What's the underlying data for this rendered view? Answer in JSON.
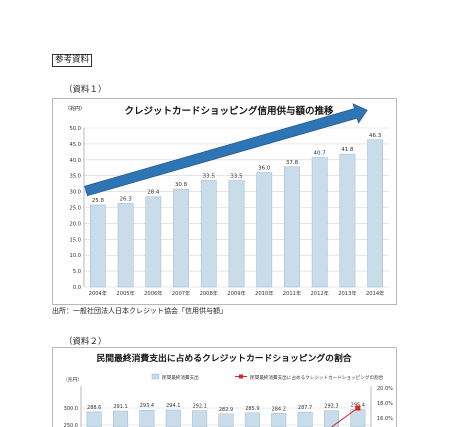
{
  "page": {
    "reference_tag": "参考資料",
    "material1_caption": "（資料１）",
    "material2_caption": "（資料２）",
    "source_note": "出所：一般社団法人日本クレジット協会「信用供与額」"
  },
  "chart_data": [
    {
      "type": "bar",
      "title": "クレジットカードショッピング信用供与額の推移",
      "ylabel": "（兆円）",
      "categories": [
        "2004年",
        "2005年",
        "2006年",
        "2007年",
        "2008年",
        "2009年",
        "2010年",
        "2011年",
        "2012年",
        "2013年",
        "2014年"
      ],
      "values": [
        25.8,
        26.3,
        28.4,
        30.8,
        33.5,
        33.5,
        36.0,
        37.8,
        40.7,
        41.8,
        46.3
      ],
      "value_labels": [
        "25.8",
        "26.3",
        "28.4",
        "30.8",
        "33.5",
        "33.5",
        "36.0",
        "37.8",
        "40.7",
        "41.8",
        "46.3"
      ],
      "ylim": [
        0,
        50
      ],
      "yticks": [
        "0.0",
        "5.0",
        "10.0",
        "15.0",
        "20.0",
        "25.0",
        "30.0",
        "35.0",
        "40.0",
        "45.0",
        "50.0"
      ],
      "grid": true,
      "bar_color": "#c9dcea",
      "arrow_color": "#2e75b6"
    },
    {
      "type": "bar",
      "title": "民間最終消費支出に占めるクレジットカードショッピングの割合",
      "ylabel": "（兆円）",
      "legend": [
        "民間最終消費支出",
        "民間最終消費支出に占めるクレジットカードショッピングの割合"
      ],
      "legend_position": "top",
      "values": [
        288.6,
        291.1,
        293.4,
        294.1,
        292.1,
        282.9,
        285.9,
        284.2,
        287.7,
        292.3,
        295.4
      ],
      "value_labels": [
        "288.6",
        "291.1",
        "293.4",
        "294.1",
        "292.1",
        "282.9",
        "285.9",
        "284.2",
        "287.7",
        "292.3",
        "295.4"
      ],
      "yticks_left": [
        "300.0",
        "250.0"
      ],
      "yticks_right": [
        "20.0%",
        "18.0%",
        "16.0%"
      ],
      "bar_color": "#c9dcea",
      "line_color": "#d0252b"
    }
  ]
}
